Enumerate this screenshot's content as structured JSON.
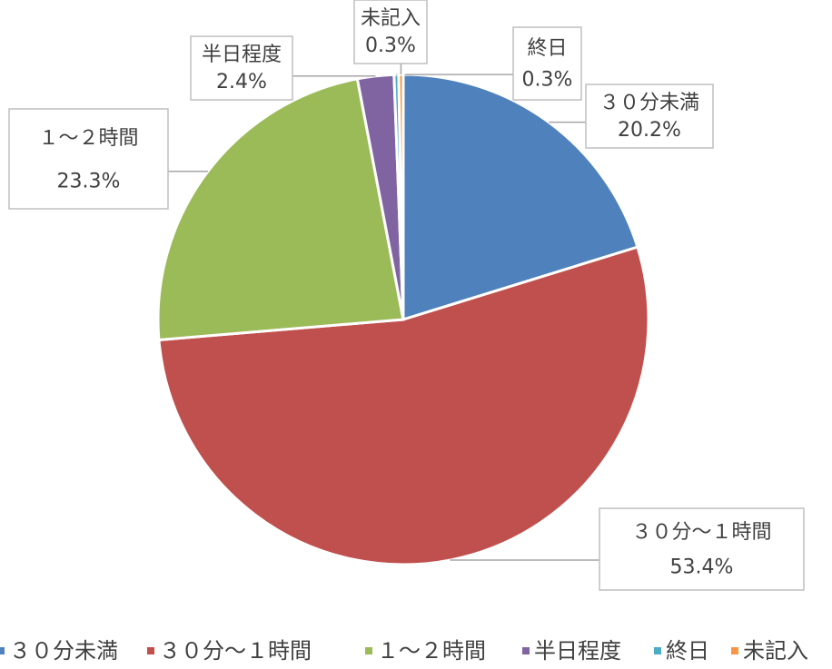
{
  "chart_data": {
    "type": "pie",
    "categories": [
      "３０分未満",
      "３０分～１時間",
      "１～２時間",
      "半日程度",
      "終日",
      "未記入"
    ],
    "values": [
      20.2,
      53.4,
      23.3,
      2.4,
      0.3,
      0.3
    ],
    "value_labels": [
      "20.2%",
      "53.4%",
      "23.3%",
      "2.4%",
      "0.3%",
      "0.3%"
    ],
    "colors": [
      "#4f81bd",
      "#c0504d",
      "#9bbb59",
      "#8064a2",
      "#4bacc6",
      "#f79646"
    ],
    "legend": "bottom"
  }
}
